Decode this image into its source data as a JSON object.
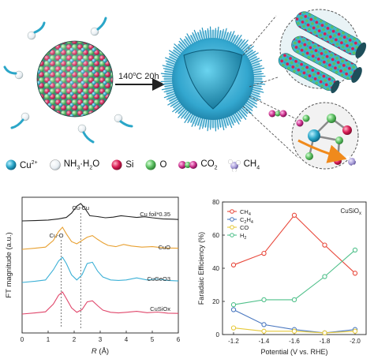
{
  "scheme": {
    "condition": {
      "temp": "140",
      "deg": "o",
      "unit": "C 20h"
    },
    "legend": [
      {
        "label": "Cu",
        "sup": "2+",
        "color": "#2aa6c8",
        "icon": "cu2plus-sphere"
      },
      {
        "label": "NH",
        "sub": "3",
        "label2": "·H",
        "sub2": "2",
        "label3": "O",
        "color": "#ffffff",
        "icon": "nh3-h2o-sphere"
      },
      {
        "label": "Si",
        "color": "#d81b53",
        "icon": "si-sphere"
      },
      {
        "label": "O",
        "color": "#5cbf62",
        "icon": "o-sphere"
      },
      {
        "label": "CO",
        "sub": "2",
        "color": "#c62a86",
        "icon": "co2-molecule"
      },
      {
        "label": "CH",
        "sub": "4",
        "color": "#a59ad6",
        "icon": "ch4-molecule"
      }
    ]
  },
  "chart_data": [
    {
      "type": "line",
      "ylabel": "FT magnitude (a.u.)",
      "xlabel": "R (Å)",
      "xlim": [
        0,
        6
      ],
      "xticks": [
        "0",
        "1",
        "2",
        "3",
        "4",
        "5",
        "6"
      ],
      "annotations": [
        {
          "text": "Cu-O",
          "x": 1.5
        },
        {
          "text": "Cu-Cu",
          "x": 2.25
        }
      ],
      "series": [
        {
          "name": "Cu foil*0.35",
          "color": "#222222",
          "x": [
            0,
            0.5,
            1.0,
            1.4,
            1.7,
            1.9,
            2.1,
            2.25,
            2.4,
            2.6,
            2.9,
            3.2,
            3.5,
            3.8,
            4.1,
            4.4,
            4.7,
            5.0,
            5.4,
            5.8,
            6.0
          ],
          "y": [
            0.0,
            0.02,
            0.05,
            0.12,
            0.2,
            0.45,
            0.85,
            1.0,
            0.75,
            0.3,
            0.25,
            0.18,
            0.22,
            0.3,
            0.25,
            0.2,
            0.24,
            0.18,
            0.12,
            0.1,
            0.08
          ]
        },
        {
          "name": "CuO",
          "color": "#e8a030",
          "x": [
            0,
            0.5,
            0.9,
            1.2,
            1.4,
            1.55,
            1.7,
            1.9,
            2.1,
            2.3,
            2.5,
            2.7,
            2.9,
            3.1,
            3.3,
            3.6,
            3.9,
            4.2,
            4.6,
            5.0,
            5.5,
            6.0
          ],
          "y": [
            0.0,
            0.05,
            0.1,
            0.4,
            0.8,
            1.0,
            0.7,
            0.35,
            0.25,
            0.4,
            0.55,
            0.62,
            0.45,
            0.3,
            0.18,
            0.12,
            0.22,
            0.15,
            0.1,
            0.12,
            0.06,
            0.05
          ]
        },
        {
          "name": "CuGeO3",
          "color": "#3cb0d6",
          "x": [
            0,
            0.5,
            0.9,
            1.2,
            1.4,
            1.55,
            1.7,
            1.9,
            2.1,
            2.3,
            2.5,
            2.7,
            2.9,
            3.1,
            3.4,
            3.7,
            4.0,
            4.4,
            4.8,
            5.2,
            5.6,
            6.0
          ],
          "y": [
            0.0,
            0.05,
            0.1,
            0.5,
            0.85,
            1.0,
            0.75,
            0.3,
            0.1,
            0.3,
            0.75,
            0.8,
            0.45,
            0.22,
            0.1,
            0.08,
            0.1,
            0.18,
            0.1,
            0.14,
            0.08,
            0.06
          ]
        },
        {
          "name": "CuSiOx",
          "color": "#e0476b",
          "x": [
            0,
            0.5,
            0.9,
            1.2,
            1.4,
            1.55,
            1.7,
            1.9,
            2.1,
            2.3,
            2.5,
            2.7,
            2.9,
            3.1,
            3.4,
            3.7,
            4.0,
            4.4,
            4.8,
            5.2,
            5.6,
            6.0
          ],
          "y": [
            0.0,
            0.05,
            0.1,
            0.45,
            0.85,
            1.0,
            0.7,
            0.28,
            0.08,
            0.2,
            0.55,
            0.6,
            0.38,
            0.18,
            0.08,
            0.05,
            0.08,
            0.12,
            0.06,
            0.09,
            0.04,
            0.03
          ]
        }
      ]
    },
    {
      "type": "line",
      "title": "CuSiOx",
      "ylabel": "Faradaic Efficiency (%)",
      "xlabel": "Potential (V vs. RHE)",
      "ylim": [
        0,
        80
      ],
      "yticks": [
        "0",
        "20",
        "40",
        "60",
        "80"
      ],
      "categories": [
        "-1.2",
        "-1.4",
        "-1.6",
        "-1.8",
        "-2.0"
      ],
      "series": [
        {
          "name": "CH4",
          "color": "#e8473a",
          "values": [
            42,
            49,
            72,
            54,
            37
          ]
        },
        {
          "name": "C2H4",
          "color": "#4a78c0",
          "values": [
            15,
            6,
            3,
            1,
            3
          ]
        },
        {
          "name": "CO",
          "color": "#e6c93a",
          "values": [
            4,
            2,
            2,
            1,
            2
          ]
        },
        {
          "name": "H2",
          "color": "#4fc08a",
          "values": [
            18,
            21,
            21,
            35,
            51
          ]
        }
      ]
    }
  ]
}
